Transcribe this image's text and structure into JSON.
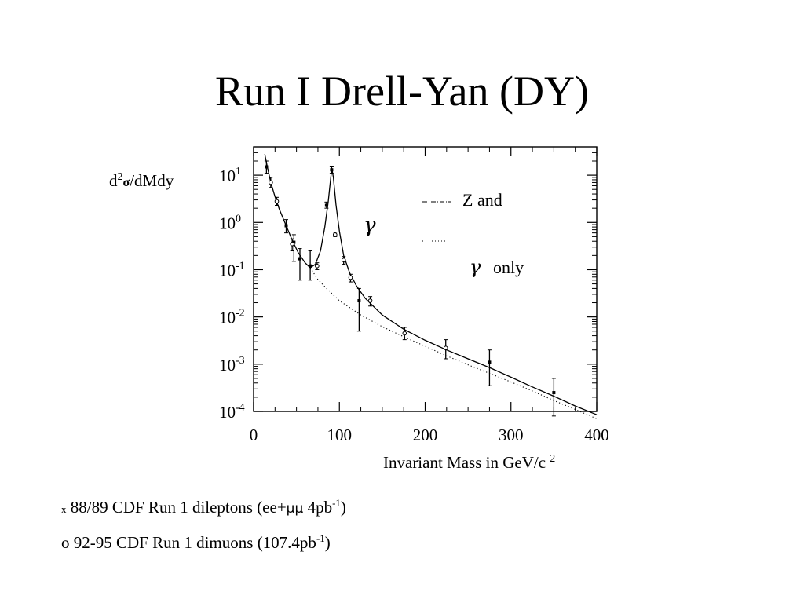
{
  "slide": {
    "title": "Run I Drell-Yan (DY)"
  },
  "chart_data": {
    "type": "scatter",
    "title": "",
    "ylabel": "d²σ/dMdy",
    "xlabel": "Invariant Mass in GeV/c²",
    "xlim": [
      0,
      400
    ],
    "ylim_log10": [
      -4,
      1.6
    ],
    "y_scale": "log",
    "x_ticks": [
      "0",
      "100",
      "200",
      "300",
      "400"
    ],
    "y_tick_labels": [
      {
        "base": "10",
        "exp": "1",
        "log": 1
      },
      {
        "base": "10",
        "exp": "0",
        "log": 0
      },
      {
        "base": "10",
        "exp": "-1",
        "log": -1
      },
      {
        "base": "10",
        "exp": "-2",
        "log": -2
      },
      {
        "base": "10",
        "exp": "-3",
        "log": -3
      },
      {
        "base": "10",
        "exp": "-4",
        "log": -4
      }
    ],
    "legend": {
      "placement": "top-right",
      "z_label": "Z and",
      "gamma_glyph": "γ",
      "gamma_only_label": "only"
    },
    "series": [
      {
        "name": "88/89 CDF Run 1 dileptons",
        "marker": "x",
        "points": [
          {
            "x": 15,
            "y": 15,
            "lo": 11,
            "hi": 20
          },
          {
            "x": 38,
            "y": 0.85,
            "lo": 0.6,
            "hi": 1.15
          },
          {
            "x": 47,
            "y": 0.38,
            "lo": 0.15,
            "hi": 0.55
          },
          {
            "x": 54,
            "y": 0.17,
            "lo": 0.06,
            "hi": 0.28
          },
          {
            "x": 66,
            "y": 0.12,
            "lo": 0.06,
            "hi": 0.25
          },
          {
            "x": 85,
            "y": 2.3,
            "lo": 2.0,
            "hi": 2.7
          },
          {
            "x": 91,
            "y": 13,
            "lo": 11,
            "hi": 15
          },
          {
            "x": 123,
            "y": 0.022,
            "lo": 0.005,
            "hi": 0.04
          },
          {
            "x": 275,
            "y": 0.0011,
            "lo": 0.00035,
            "hi": 0.002
          },
          {
            "x": 350,
            "y": 0.00025,
            "lo": 8e-05,
            "hi": 0.0005
          }
        ]
      },
      {
        "name": "92-95 CDF Run 1 dimuons",
        "marker": "o",
        "points": [
          {
            "x": 20,
            "y": 7,
            "lo": 5.5,
            "hi": 9
          },
          {
            "x": 27,
            "y": 2.8,
            "lo": 2.3,
            "hi": 3.4
          },
          {
            "x": 45,
            "y": 0.35,
            "lo": 0.25,
            "hi": 0.45
          },
          {
            "x": 74,
            "y": 0.12,
            "lo": 0.1,
            "hi": 0.14
          },
          {
            "x": 95,
            "y": 0.55,
            "lo": 0.5,
            "hi": 0.62
          },
          {
            "x": 105,
            "y": 0.16,
            "lo": 0.13,
            "hi": 0.19
          },
          {
            "x": 113,
            "y": 0.068,
            "lo": 0.055,
            "hi": 0.08
          },
          {
            "x": 136,
            "y": 0.022,
            "lo": 0.017,
            "hi": 0.027
          },
          {
            "x": 176,
            "y": 0.0045,
            "lo": 0.0033,
            "hi": 0.006
          },
          {
            "x": 224,
            "y": 0.0022,
            "lo": 0.0013,
            "hi": 0.0033
          }
        ]
      },
      {
        "name": "Z and γ",
        "line": "dash-dot",
        "curve": [
          [
            13,
            28
          ],
          [
            16,
            15
          ],
          [
            20,
            7
          ],
          [
            25,
            3.5
          ],
          [
            30,
            1.9
          ],
          [
            38,
            0.85
          ],
          [
            45,
            0.42
          ],
          [
            52,
            0.23
          ],
          [
            60,
            0.14
          ],
          [
            66,
            0.11
          ],
          [
            72,
            0.13
          ],
          [
            78,
            0.25
          ],
          [
            83,
            0.8
          ],
          [
            87,
            2.7
          ],
          [
            90,
            9
          ],
          [
            91.2,
            14
          ],
          [
            93,
            9
          ],
          [
            96,
            2.4
          ],
          [
            100,
            0.65
          ],
          [
            105,
            0.2
          ],
          [
            112,
            0.085
          ],
          [
            120,
            0.045
          ],
          [
            130,
            0.025
          ],
          [
            150,
            0.011
          ],
          [
            175,
            0.0055
          ],
          [
            200,
            0.0032
          ],
          [
            225,
            0.002
          ],
          [
            250,
            0.0013
          ],
          [
            275,
            0.00085
          ],
          [
            300,
            0.00053
          ],
          [
            325,
            0.00033
          ],
          [
            350,
            0.00021
          ],
          [
            375,
            0.00013
          ],
          [
            400,
            8.5e-05
          ]
        ]
      },
      {
        "name": "γ only",
        "line": "dotted",
        "curve": [
          [
            66,
            0.11
          ],
          [
            75,
            0.062
          ],
          [
            85,
            0.04
          ],
          [
            100,
            0.022
          ],
          [
            125,
            0.011
          ],
          [
            150,
            0.0062
          ],
          [
            175,
            0.0038
          ],
          [
            200,
            0.0024
          ],
          [
            225,
            0.0015
          ],
          [
            250,
            0.00097
          ],
          [
            275,
            0.00064
          ],
          [
            300,
            0.00042
          ],
          [
            325,
            0.00027
          ],
          [
            350,
            0.00017
          ],
          [
            375,
            0.00011
          ],
          [
            400,
            7e-05
          ]
        ]
      }
    ]
  },
  "footnotes": {
    "line1": {
      "marker": "x",
      "text_a": "88/89  CDF Run 1 dileptons (ee+",
      "mu_glyph": "μμ",
      "text_b": " 4pb",
      "sup": "-1",
      "text_c": ")"
    },
    "line2": {
      "text_a": "o 92-95 CDF Run 1 dimuons (107.4pb",
      "sup": "-1",
      "text_c": ")"
    }
  }
}
